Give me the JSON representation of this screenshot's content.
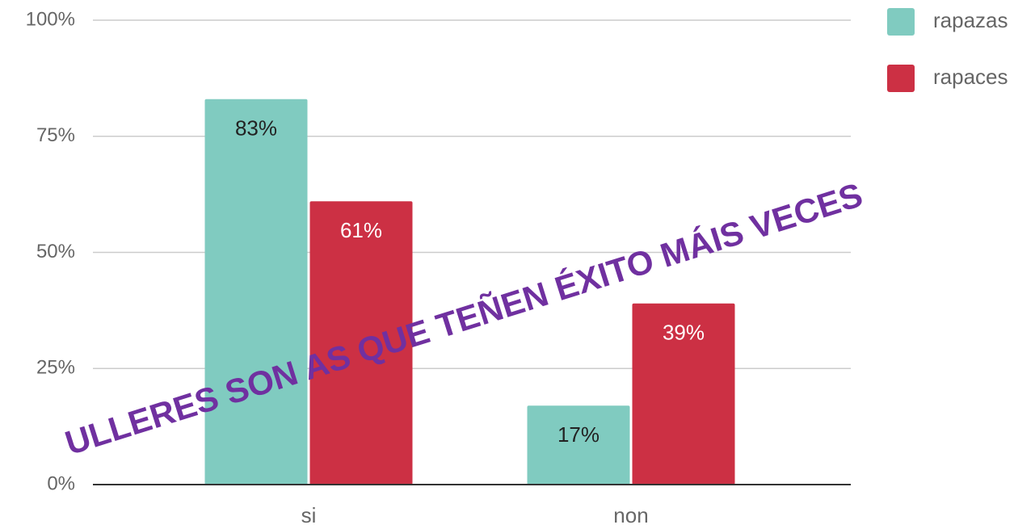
{
  "chart_data": {
    "type": "bar",
    "categories": [
      "si",
      "non"
    ],
    "series": [
      {
        "name": "rapazas",
        "color": "#80cbc0",
        "values": [
          83,
          17
        ],
        "value_labels": [
          "83%",
          "17%"
        ]
      },
      {
        "name": "rapaces",
        "color": "#cc3044",
        "values": [
          61,
          39
        ],
        "value_labels": [
          "61%",
          "39%"
        ]
      }
    ],
    "ylim": [
      0,
      100
    ],
    "yticks": [
      {
        "value": 0,
        "label": "0%"
      },
      {
        "value": 25,
        "label": "25%"
      },
      {
        "value": 50,
        "label": "50%"
      },
      {
        "value": 75,
        "label": "75%"
      },
      {
        "value": 100,
        "label": "100%"
      }
    ],
    "grid": true,
    "legend": "top-right",
    "annotation": "ULLERES SON AS QUE TEÑEN ÉXITO MÁIS VECES"
  }
}
